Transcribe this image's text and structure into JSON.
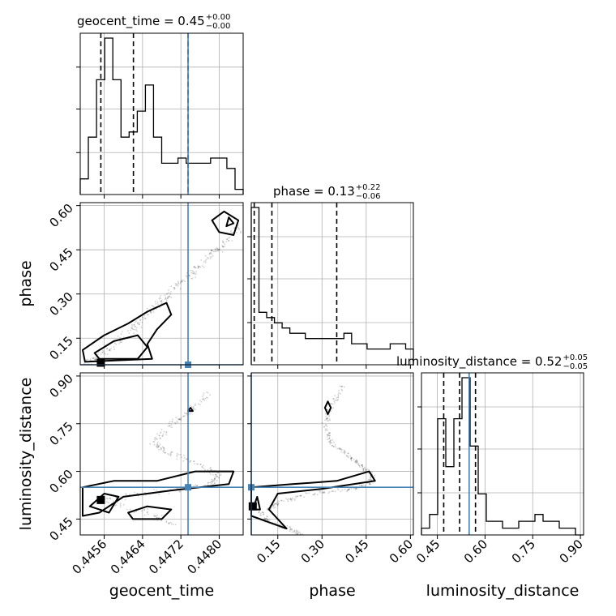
{
  "chart_data": {
    "type": "corner",
    "parameters": [
      "geocent_time",
      "phase",
      "luminosity_distance"
    ],
    "truth": {
      "geocent_time": 0.44735,
      "phase": 0.06,
      "luminosity_distance": 0.55
    },
    "grid": true,
    "titles": [
      {
        "param": "geocent_time",
        "text": "geocent_time = 0.45",
        "plus": "+0.00",
        "minus": "−0.00"
      },
      {
        "param": "phase",
        "text": "phase = 0.13",
        "plus": "+0.22",
        "minus": "−0.06"
      },
      {
        "param": "luminosity_distance",
        "text": "luminosity_distance = 0.52",
        "plus": "+0.05",
        "minus": "−0.05"
      }
    ],
    "axes": {
      "geocent_time": {
        "label": "geocent_time",
        "range": [
          0.4451,
          0.4485
        ],
        "ticks": [
          0.4456,
          0.4464,
          0.4472,
          0.448
        ],
        "tick_labels": [
          "0.4456",
          "0.4464",
          "0.4472",
          "0.4480"
        ]
      },
      "phase": {
        "label": "phase",
        "range": [
          0.06,
          0.61
        ],
        "ticks": [
          0.15,
          0.3,
          0.45,
          0.6
        ],
        "tick_labels": [
          "0.15",
          "0.30",
          "0.45",
          "0.60"
        ]
      },
      "luminosity_distance": {
        "label": "luminosity_distance",
        "range": [
          0.4,
          0.91
        ],
        "ticks": [
          0.45,
          0.6,
          0.75,
          0.9
        ],
        "tick_labels": [
          "0.45",
          "0.60",
          "0.75",
          "0.90"
        ]
      }
    },
    "histograms": {
      "geocent_time": {
        "quantiles": [
          0.44553,
          0.44621,
          0.44735
        ],
        "counts": [
          3,
          11,
          22,
          30,
          22,
          11,
          12,
          16,
          21,
          11,
          6,
          6,
          7,
          6,
          6,
          6,
          7,
          7,
          5,
          1
        ]
      },
      "phase": {
        "quantiles": [
          0.07,
          0.13,
          0.35
        ],
        "counts": [
          30,
          10,
          9,
          8,
          7,
          6,
          6,
          5,
          5,
          5,
          5,
          5,
          6,
          4,
          4,
          3,
          3,
          3,
          4,
          4,
          3
        ]
      },
      "luminosity_distance": {
        "quantiles": [
          0.47,
          0.52,
          0.57
        ],
        "counts": [
          1,
          3,
          17,
          10,
          17,
          23,
          13,
          6,
          2,
          2,
          1,
          1,
          2,
          2,
          3,
          2,
          2,
          1,
          1,
          0
        ]
      }
    },
    "scatter_trends": {
      "phase_vs_geocent_time": [
        [
          0.4452,
          0.06
        ],
        [
          0.4455,
          0.09
        ],
        [
          0.4459,
          0.14
        ],
        [
          0.4463,
          0.2
        ],
        [
          0.4466,
          0.25
        ],
        [
          0.4469,
          0.29
        ],
        [
          0.4472,
          0.34
        ],
        [
          0.4475,
          0.38
        ],
        [
          0.4478,
          0.43
        ],
        [
          0.4481,
          0.47
        ],
        [
          0.4484,
          0.52
        ]
      ],
      "luminosity_distance_vs_geocent_time": [
        [
          0.4478,
          0.85
        ],
        [
          0.4474,
          0.79
        ],
        [
          0.447,
          0.75
        ],
        [
          0.4466,
          0.69
        ],
        [
          0.4469,
          0.66
        ],
        [
          0.4475,
          0.63
        ],
        [
          0.448,
          0.59
        ],
        [
          0.4478,
          0.56
        ],
        [
          0.447,
          0.54
        ],
        [
          0.446,
          0.52
        ],
        [
          0.4455,
          0.51
        ],
        [
          0.4465,
          0.47
        ],
        [
          0.4471,
          0.43
        ]
      ],
      "luminosity_distance_vs_phase": [
        [
          0.37,
          0.87
        ],
        [
          0.33,
          0.8
        ],
        [
          0.31,
          0.74
        ],
        [
          0.33,
          0.69
        ],
        [
          0.39,
          0.65
        ],
        [
          0.43,
          0.62
        ],
        [
          0.47,
          0.59
        ],
        [
          0.46,
          0.56
        ],
        [
          0.38,
          0.54
        ],
        [
          0.25,
          0.53
        ],
        [
          0.15,
          0.5
        ],
        [
          0.09,
          0.47
        ],
        [
          0.12,
          0.44
        ],
        [
          0.19,
          0.42
        ],
        [
          0.23,
          0.4
        ]
      ]
    }
  }
}
